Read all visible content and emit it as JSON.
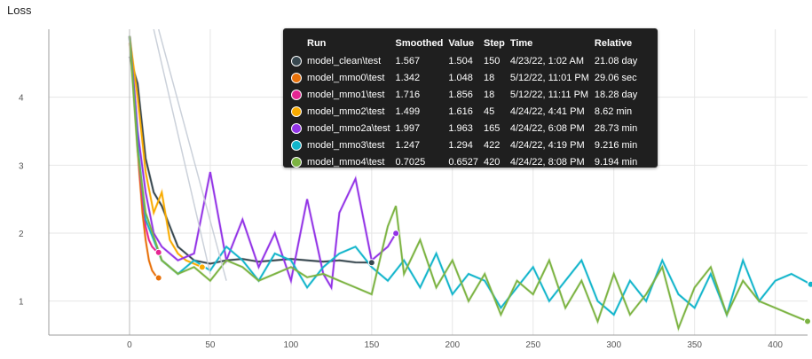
{
  "title": "Loss",
  "chart_data": {
    "type": "line",
    "title": "Loss",
    "xlabel": "",
    "ylabel": "",
    "xlim": [
      -50,
      420
    ],
    "ylim": [
      0.5,
      5.0
    ],
    "x_ticks": [
      0,
      50,
      100,
      150,
      200,
      250,
      300,
      350,
      400
    ],
    "y_ticks": [
      1,
      2,
      3,
      4
    ],
    "grid": true,
    "series": [
      {
        "name": "model_clean\\test",
        "color": "#37474f",
        "x": [
          0,
          5,
          10,
          15,
          20,
          25,
          30,
          35,
          40,
          50,
          60,
          70,
          80,
          90,
          100,
          110,
          120,
          130,
          140,
          150
        ],
        "y": [
          4.6,
          4.2,
          3.1,
          2.6,
          2.4,
          2.1,
          1.8,
          1.7,
          1.6,
          1.55,
          1.6,
          1.62,
          1.58,
          1.6,
          1.62,
          1.6,
          1.58,
          1.6,
          1.57,
          1.567
        ]
      },
      {
        "name": "model_mmo0\\test",
        "color": "#e8710a",
        "x": [
          0,
          2,
          4,
          6,
          8,
          10,
          12,
          14,
          16,
          18
        ],
        "y": [
          4.8,
          4.3,
          3.6,
          2.9,
          2.3,
          1.9,
          1.6,
          1.45,
          1.38,
          1.342
        ]
      },
      {
        "name": "model_mmo1\\test",
        "color": "#e52592",
        "x": [
          0,
          2,
          4,
          6,
          8,
          10,
          12,
          14,
          16,
          18
        ],
        "y": [
          4.9,
          4.4,
          3.8,
          3.0,
          2.5,
          2.1,
          1.9,
          1.8,
          1.75,
          1.716
        ]
      },
      {
        "name": "model_mmo2\\test",
        "color": "#f9ab00",
        "x": [
          0,
          5,
          10,
          15,
          20,
          25,
          30,
          35,
          40,
          45
        ],
        "y": [
          4.9,
          4.0,
          2.9,
          2.3,
          2.6,
          1.9,
          1.7,
          1.6,
          1.55,
          1.499
        ]
      },
      {
        "name": "model_mmo2a\\test",
        "color": "#9334e6",
        "x": [
          0,
          5,
          10,
          15,
          20,
          30,
          40,
          50,
          60,
          70,
          80,
          90,
          100,
          110,
          120,
          125,
          130,
          140,
          150,
          160,
          165
        ],
        "y": [
          4.9,
          3.5,
          2.6,
          2.0,
          1.8,
          1.6,
          1.7,
          2.9,
          1.6,
          2.2,
          1.5,
          2.0,
          1.3,
          2.5,
          1.4,
          1.2,
          2.3,
          2.8,
          1.6,
          1.8,
          1.997
        ]
      },
      {
        "name": "model_mmo3\\test",
        "color": "#12b5cb",
        "x": [
          0,
          5,
          10,
          20,
          30,
          40,
          50,
          60,
          70,
          80,
          90,
          100,
          110,
          120,
          130,
          140,
          150,
          160,
          170,
          180,
          190,
          200,
          210,
          220,
          230,
          240,
          250,
          260,
          270,
          280,
          290,
          300,
          310,
          320,
          330,
          340,
          350,
          360,
          370,
          380,
          390,
          400,
          410,
          422
        ],
        "y": [
          4.9,
          3.3,
          2.2,
          1.6,
          1.4,
          1.6,
          1.45,
          1.8,
          1.6,
          1.3,
          1.7,
          1.6,
          1.2,
          1.5,
          1.7,
          1.8,
          1.5,
          1.3,
          1.6,
          1.2,
          1.7,
          1.1,
          1.4,
          1.3,
          0.9,
          1.2,
          1.5,
          1.0,
          1.3,
          1.6,
          1.0,
          0.8,
          1.3,
          1.0,
          1.6,
          1.1,
          0.9,
          1.4,
          0.8,
          1.6,
          1.0,
          1.3,
          1.4,
          1.247
        ]
      },
      {
        "name": "model_mmo4\\test",
        "color": "#7cb342",
        "x": [
          0,
          5,
          10,
          20,
          30,
          40,
          50,
          60,
          70,
          80,
          90,
          100,
          110,
          120,
          130,
          140,
          150,
          155,
          160,
          165,
          170,
          180,
          190,
          200,
          210,
          220,
          230,
          240,
          250,
          260,
          270,
          280,
          290,
          300,
          310,
          320,
          330,
          340,
          350,
          360,
          370,
          380,
          390,
          400,
          410,
          420
        ],
        "y": [
          4.9,
          3.2,
          2.3,
          1.6,
          1.4,
          1.5,
          1.3,
          1.6,
          1.5,
          1.3,
          1.4,
          1.5,
          1.35,
          1.4,
          1.3,
          1.2,
          1.1,
          1.6,
          2.1,
          2.4,
          1.4,
          1.9,
          1.2,
          1.6,
          1.0,
          1.4,
          0.8,
          1.3,
          1.1,
          1.6,
          0.9,
          1.3,
          0.7,
          1.4,
          0.8,
          1.1,
          1.5,
          0.6,
          1.2,
          1.5,
          0.8,
          1.3,
          1.0,
          0.9,
          0.8,
          0.7025
        ]
      },
      {
        "name": "",
        "color": "#c5ccd6",
        "x": [
          15,
          50
        ],
        "y": [
          5.0,
          1.4
        ]
      },
      {
        "name": "",
        "color": "#c5ccd6",
        "x": [
          18,
          60
        ],
        "y": [
          5.0,
          1.3
        ]
      }
    ]
  },
  "tooltip": {
    "headers": [
      "",
      "Run",
      "Smoothed",
      "Value",
      "Step",
      "Time",
      "Relative"
    ],
    "rows": [
      {
        "color": "#37474f",
        "run": "model_clean\\test",
        "smoothed": "1.567",
        "value": "1.504",
        "step": "150",
        "time": "4/23/22, 1:02 AM",
        "relative": "21.08 day"
      },
      {
        "color": "#e8710a",
        "run": "model_mmo0\\test",
        "smoothed": "1.342",
        "value": "1.048",
        "step": "18",
        "time": "5/12/22, 11:01 PM",
        "relative": "29.06 sec"
      },
      {
        "color": "#e52592",
        "run": "model_mmo1\\test",
        "smoothed": "1.716",
        "value": "1.856",
        "step": "18",
        "time": "5/12/22, 11:11 PM",
        "relative": "18.28 day"
      },
      {
        "color": "#f9ab00",
        "run": "model_mmo2\\test",
        "smoothed": "1.499",
        "value": "1.616",
        "step": "45",
        "time": "4/24/22, 4:41 PM",
        "relative": "8.62 min"
      },
      {
        "color": "#9334e6",
        "run": "model_mmo2a\\test",
        "smoothed": "1.997",
        "value": "1.963",
        "step": "165",
        "time": "4/24/22, 6:08 PM",
        "relative": "28.73 min"
      },
      {
        "color": "#12b5cb",
        "run": "model_mmo3\\test",
        "smoothed": "1.247",
        "value": "1.294",
        "step": "422",
        "time": "4/24/22, 4:19 PM",
        "relative": "9.216 min"
      },
      {
        "color": "#7cb342",
        "run": "model_mmo4\\test",
        "smoothed": "0.7025",
        "value": "0.6527",
        "step": "420",
        "time": "4/24/22, 8:08 PM",
        "relative": "9.194 min"
      }
    ]
  }
}
